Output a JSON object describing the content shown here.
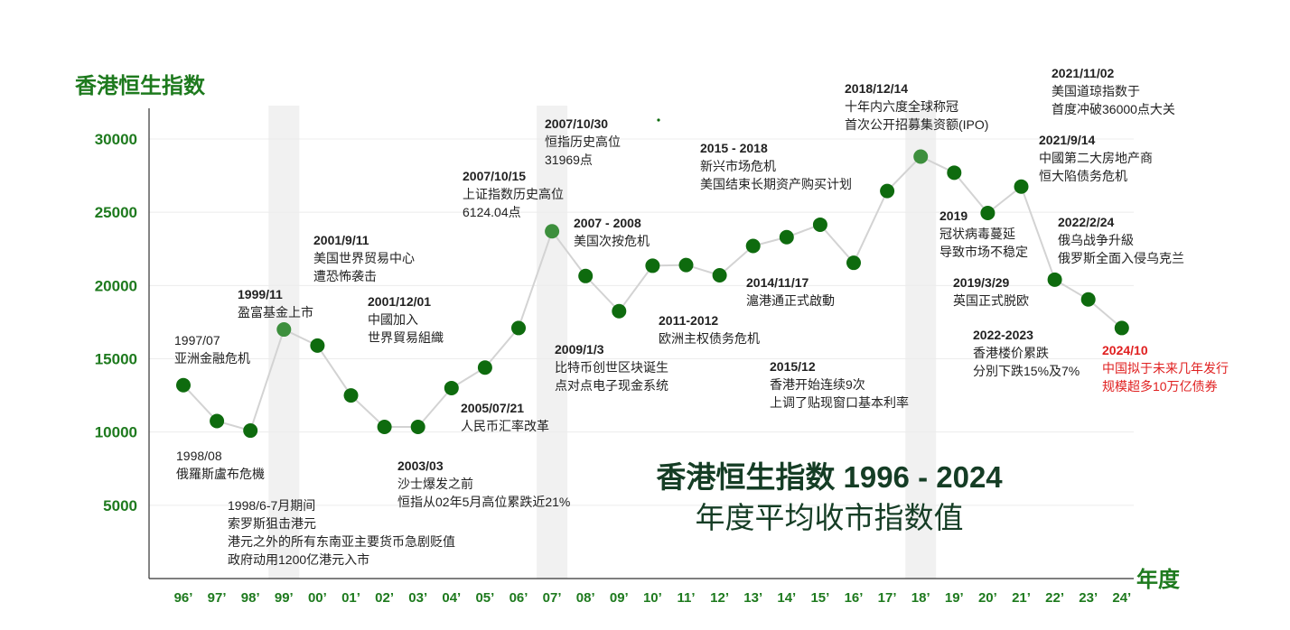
{
  "colors": {
    "axis_text": "#1e7a1e",
    "point": "#0e6b0e",
    "point_highlight": "#3d8f3d",
    "line": "#d3d3d3",
    "band": "#f1f1f1",
    "title": "#153d25",
    "highlight_text": "#e02020"
  },
  "chart_data": {
    "type": "line",
    "ylabel": "香港恒生指数",
    "xlabel": "年度",
    "title": "香港恒生指数 1996 - 2024",
    "subtitle": "年度平均收市指数值",
    "ylim": [
      0,
      32500
    ],
    "yticks": [
      5000,
      10000,
      15000,
      20000,
      25000,
      30000
    ],
    "ytick_labels": [
      "5000",
      "10000",
      "15000",
      "20000",
      "25000",
      "30000"
    ],
    "grid": "horizontal",
    "categories": [
      "96’",
      "97’",
      "98’",
      "99’",
      "00’",
      "01’",
      "02’",
      "03’",
      "04’",
      "05’",
      "06’",
      "07’",
      "08’",
      "09’",
      "10’",
      "11’",
      "12’",
      "13’",
      "14’",
      "15’",
      "16’",
      "17’",
      "18’",
      "19’",
      "20’",
      "21’",
      "22’",
      "23’",
      "24’"
    ],
    "values": [
      13200,
      10750,
      10100,
      17000,
      15900,
      12500,
      10350,
      10350,
      13000,
      14400,
      17100,
      23700,
      20650,
      18250,
      21350,
      21400,
      20700,
      22700,
      23300,
      24150,
      21550,
      26450,
      28800,
      27700,
      24950,
      26750,
      20400,
      19050,
      17100
    ],
    "shaded_years": [
      "99’",
      "07’",
      "18’"
    ],
    "highlighted_points": [
      "99’",
      "07’",
      "18’"
    ],
    "annotations": [
      {
        "year": "96’",
        "lines": [
          "1997/07",
          "亚洲金融危机"
        ],
        "date_style": "light"
      },
      {
        "year": "97’",
        "lines": [
          "1998/08",
          "俄羅斯盧布危機"
        ],
        "date_style": "light"
      },
      {
        "year": "98’",
        "lines": [
          "1998/6-7月期间",
          "索罗斯狙击港元",
          "港元之外的所有东南亚主要货币急剧贬值",
          "政府动用1200亿港元入市"
        ],
        "date_style": "light"
      },
      {
        "year": "99’",
        "lines": [
          "1999/11",
          "盈富基金上市"
        ]
      },
      {
        "year": "00’",
        "lines": [
          "2001/9/11",
          "美国世界贸易中心",
          "遭恐怖袭击"
        ]
      },
      {
        "year": "02’",
        "lines": [
          "2001/12/01",
          "中國加入",
          "世界貿易組織"
        ]
      },
      {
        "year": "03’",
        "lines": [
          "2003/03",
          "沙士爆发之前",
          "恒指从02年5月高位累跌近21%"
        ]
      },
      {
        "year": "05’",
        "lines": [
          "2005/07/21",
          "人民币汇率改革"
        ]
      },
      {
        "year": "06’",
        "lines": [
          "2007/10/15",
          "上证指数历史高位",
          "6124.04点"
        ]
      },
      {
        "year": "07’",
        "lines": [
          "2007/10/30",
          "恒指历史高位",
          "31969点"
        ]
      },
      {
        "year": "08’",
        "lines": [
          "2007 - 2008",
          "美国次按危机"
        ]
      },
      {
        "year": "09’",
        "lines": [
          "2009/1/3",
          "比特币创世区块诞生",
          "点对点电子现金系统"
        ]
      },
      {
        "year": "11’",
        "lines": [
          "2011-2012",
          "欧洲主权债务危机"
        ]
      },
      {
        "year": "13’",
        "lines": [
          "2015 - 2018",
          "新兴市场危机",
          "美国结束长期资产购买计划"
        ]
      },
      {
        "year": "14’",
        "lines": [
          "2014/11/17",
          "滬港通正式啟動"
        ]
      },
      {
        "year": "15’",
        "lines": [
          "2015/12",
          "香港开始连续9次",
          "上调了贴现窗口基本利率"
        ]
      },
      {
        "year": "18’",
        "lines": [
          "2018/12/14",
          "十年内六度全球称冠",
          "首次公开招募集资额(IPO)"
        ]
      },
      {
        "year": "19’",
        "lines": [
          "2019",
          "冠状病毒蔓延",
          "导致市场不稳定"
        ]
      },
      {
        "year": "20’",
        "lines": [
          "2019/3/29",
          "英国正式脱欧"
        ]
      },
      {
        "year": "21’",
        "lines": [
          "2022-2023",
          "香港楼价累跌",
          "分別下跌15%及7%"
        ]
      },
      {
        "year": "21’b",
        "lines": [
          "2021/9/14",
          "中國第二大房地产商",
          "恒大陷债务危机"
        ]
      },
      {
        "year": "22’",
        "lines": [
          "2021/11/02",
          "美国道琼指数于",
          "首度冲破36000点大关"
        ]
      },
      {
        "year": "22’b",
        "lines": [
          "2022/2/24",
          "俄乌战争升級",
          "俄罗斯全面入侵乌克兰"
        ]
      },
      {
        "year": "24’",
        "lines": [
          "2024/10",
          "中国拟于未来几年发行",
          "规模超多10万亿债券"
        ],
        "color": "red"
      }
    ]
  }
}
